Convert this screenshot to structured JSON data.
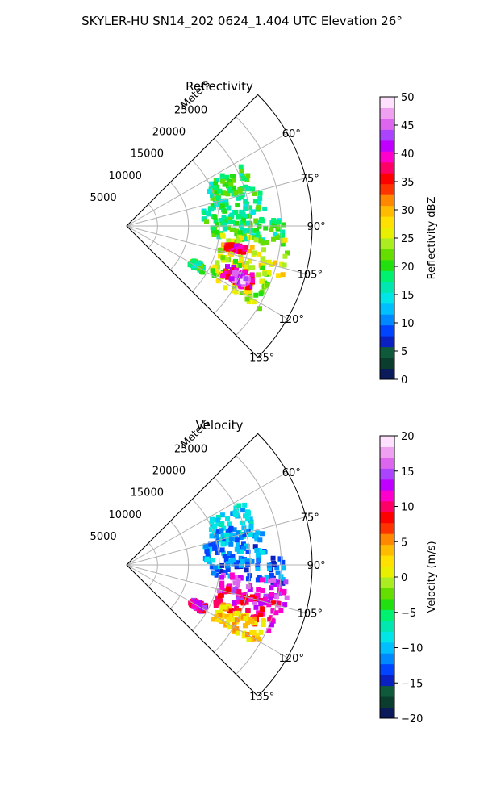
{
  "suptitle": "SKYLER-HU  SN14_202  0624_1.404 UTC Elevation 26°",
  "chart_data": [
    {
      "type": "polar-sector",
      "title": "Reflectivity",
      "radial_label": "Meters",
      "theta_ticks": [
        "60°",
        "75°",
        "90°",
        "105°",
        "120°",
        "135°"
      ],
      "theta_tick_values": [
        60,
        75,
        90,
        105,
        120,
        135
      ],
      "theta_range": [
        45,
        135
      ],
      "r_ticks": [
        "5000",
        "10000",
        "15000",
        "20000",
        "25000"
      ],
      "r_tick_values": [
        5000,
        10000,
        15000,
        20000,
        25000
      ],
      "r_range": [
        0,
        30000
      ],
      "grid": true,
      "colorbar": {
        "label": "Reflectivity dBZ",
        "range": [
          0,
          50
        ],
        "ticks": [
          "0",
          "5",
          "10",
          "15",
          "20",
          "25",
          "30",
          "35",
          "40",
          "45",
          "50"
        ],
        "tick_values": [
          0,
          5,
          10,
          15,
          20,
          25,
          30,
          35,
          40,
          45,
          50
        ],
        "colors": [
          "#0a1a5a",
          "#0b3d2e",
          "#0e5a3a",
          "#0a20c0",
          "#0044ff",
          "#0088ff",
          "#00bfff",
          "#00e5e5",
          "#00e8b0",
          "#00f070",
          "#22e010",
          "#66dd00",
          "#aaee22",
          "#e8f000",
          "#ffe000",
          "#ffbb00",
          "#ff8800",
          "#ff3300",
          "#ff0000",
          "#ff0066",
          "#ff00cc",
          "#c000ff",
          "#aa44ff",
          "#dd66ee",
          "#f0a0f0",
          "#ffe0ff"
        ]
      },
      "echo_regions": [
        {
          "theta": [
            62,
            78
          ],
          "r": [
            14500,
            21500
          ],
          "value": 19
        },
        {
          "theta": [
            75,
            89
          ],
          "r": [
            12500,
            22500
          ],
          "value": 18
        },
        {
          "theta": [
            87,
            97
          ],
          "r": [
            13500,
            25500
          ],
          "value": 19
        },
        {
          "theta": [
            95,
            109
          ],
          "r": [
            15500,
            26500
          ],
          "value": 26
        },
        {
          "theta": [
            100,
            103
          ],
          "r": [
            16500,
            19500
          ],
          "value": 37
        },
        {
          "theta": [
            107,
            122
          ],
          "r": [
            15500,
            25500
          ],
          "value": 24
        },
        {
          "theta": [
            111,
            118
          ],
          "r": [
            17500,
            22500
          ],
          "value": 38
        },
        {
          "theta": [
            113,
            117
          ],
          "r": [
            19000,
            21500
          ],
          "value": 45
        },
        {
          "theta": [
            117,
            122
          ],
          "r": [
            12000,
            14500
          ],
          "value": 19
        }
      ]
    },
    {
      "type": "polar-sector",
      "title": "Velocity",
      "radial_label": "Meters",
      "theta_ticks": [
        "60°",
        "75°",
        "90°",
        "105°",
        "120°",
        "135°"
      ],
      "theta_tick_values": [
        60,
        75,
        90,
        105,
        120,
        135
      ],
      "theta_range": [
        45,
        135
      ],
      "r_ticks": [
        "5000",
        "10000",
        "15000",
        "20000",
        "25000"
      ],
      "r_tick_values": [
        5000,
        10000,
        15000,
        20000,
        25000
      ],
      "r_range": [
        0,
        30000
      ],
      "grid": true,
      "colorbar": {
        "label": "Velocity (m/s)",
        "range": [
          -20,
          20
        ],
        "ticks": [
          "−20",
          "−15",
          "−10",
          "−5",
          "0",
          "5",
          "10",
          "15",
          "20"
        ],
        "tick_values": [
          -20,
          -15,
          -10,
          -5,
          0,
          5,
          10,
          15,
          20
        ],
        "colors": [
          "#0a1a5a",
          "#0b3d2e",
          "#0e5a3a",
          "#0a20c0",
          "#0044ff",
          "#0088ff",
          "#00bfff",
          "#00e5e5",
          "#00e8b0",
          "#00f070",
          "#22e010",
          "#66dd00",
          "#aaee22",
          "#e8f000",
          "#ffe000",
          "#ffbb00",
          "#ff8800",
          "#ff3300",
          "#ff0000",
          "#ff0066",
          "#ff00cc",
          "#c000ff",
          "#aa44ff",
          "#dd66ee",
          "#f0a0f0",
          "#ffe0ff"
        ]
      },
      "echo_regions": [
        {
          "theta": [
            62,
            78
          ],
          "r": [
            14500,
            21500
          ],
          "value": -10
        },
        {
          "theta": [
            75,
            89
          ],
          "r": [
            12500,
            22500
          ],
          "value": -11
        },
        {
          "theta": [
            87,
            97
          ],
          "r": [
            13500,
            25500
          ],
          "value": -12
        },
        {
          "theta": [
            95,
            108
          ],
          "r": [
            15500,
            26500
          ],
          "value": 14
        },
        {
          "theta": [
            103,
            115
          ],
          "r": [
            15500,
            25500
          ],
          "value": 10
        },
        {
          "theta": [
            112,
            122
          ],
          "r": [
            16500,
            24500
          ],
          "value": 3
        },
        {
          "theta": [
            117,
            122
          ],
          "r": [
            12000,
            14500
          ],
          "value": 12
        }
      ]
    }
  ]
}
